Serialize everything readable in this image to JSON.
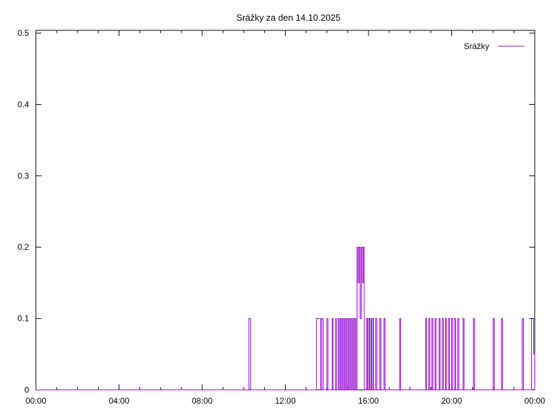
{
  "chart_data": {
    "type": "line",
    "title": "Srážky za den 14.10.2025",
    "xlabel": "",
    "ylabel": "",
    "x_ticks": [
      "00:00",
      "04:00",
      "08:00",
      "12:00",
      "16:00",
      "20:00",
      "00:00"
    ],
    "y_ticks": [
      "0",
      "0.1",
      "0.2",
      "0.3",
      "0.4",
      "0.5"
    ],
    "xlim_hours": [
      0,
      24
    ],
    "ylim": [
      0,
      0.5
    ],
    "grid": false,
    "legend_position": "top-right",
    "series": [
      {
        "name": "Srážky",
        "color": "#9400d3",
        "step": "post",
        "points": [
          [
            0.0,
            0
          ],
          [
            10.25,
            0.1
          ],
          [
            10.33,
            0
          ],
          [
            13.5,
            0.1
          ],
          [
            13.7,
            0
          ],
          [
            13.75,
            0.1
          ],
          [
            13.82,
            0
          ],
          [
            14.0,
            0.1
          ],
          [
            14.05,
            0
          ],
          [
            14.25,
            0.1
          ],
          [
            14.3,
            0
          ],
          [
            14.42,
            0.1
          ],
          [
            14.47,
            0
          ],
          [
            14.55,
            0.1
          ],
          [
            14.6,
            0
          ],
          [
            14.65,
            0.1
          ],
          [
            14.7,
            0
          ],
          [
            14.75,
            0.1
          ],
          [
            14.8,
            0
          ],
          [
            14.85,
            0.1
          ],
          [
            14.9,
            0
          ],
          [
            14.95,
            0.1
          ],
          [
            15.0,
            0
          ],
          [
            15.05,
            0.1
          ],
          [
            15.1,
            0
          ],
          [
            15.15,
            0.1
          ],
          [
            15.2,
            0
          ],
          [
            15.25,
            0.1
          ],
          [
            15.3,
            0
          ],
          [
            15.35,
            0.1
          ],
          [
            15.4,
            0
          ],
          [
            15.45,
            0.2
          ],
          [
            15.5,
            0.15
          ],
          [
            15.55,
            0.2
          ],
          [
            15.6,
            0.1
          ],
          [
            15.65,
            0.2
          ],
          [
            15.7,
            0.15
          ],
          [
            15.75,
            0.2
          ],
          [
            15.8,
            0
          ],
          [
            15.9,
            0.1
          ],
          [
            15.95,
            0
          ],
          [
            16.0,
            0.1
          ],
          [
            16.05,
            0
          ],
          [
            16.1,
            0.1
          ],
          [
            16.15,
            0
          ],
          [
            16.2,
            0.1
          ],
          [
            16.25,
            0
          ],
          [
            16.35,
            0.1
          ],
          [
            16.4,
            0
          ],
          [
            16.55,
            0.1
          ],
          [
            16.6,
            0
          ],
          [
            16.75,
            0.1
          ],
          [
            16.8,
            0
          ],
          [
            17.5,
            0.1
          ],
          [
            17.55,
            0
          ],
          [
            18.75,
            0.1
          ],
          [
            18.8,
            0
          ],
          [
            18.9,
            0.1
          ],
          [
            18.95,
            0
          ],
          [
            19.05,
            0.1
          ],
          [
            19.1,
            0
          ],
          [
            19.2,
            0.1
          ],
          [
            19.25,
            0
          ],
          [
            19.4,
            0.1
          ],
          [
            19.45,
            0
          ],
          [
            19.55,
            0.1
          ],
          [
            19.6,
            0
          ],
          [
            19.7,
            0.1
          ],
          [
            19.75,
            0
          ],
          [
            19.85,
            0.1
          ],
          [
            19.9,
            0
          ],
          [
            20.0,
            0.1
          ],
          [
            20.05,
            0
          ],
          [
            20.15,
            0.1
          ],
          [
            20.2,
            0
          ],
          [
            20.3,
            0.1
          ],
          [
            20.35,
            0
          ],
          [
            20.55,
            0.1
          ],
          [
            20.6,
            0
          ],
          [
            21.05,
            0.1
          ],
          [
            21.1,
            0
          ],
          [
            22.0,
            0.1
          ],
          [
            22.05,
            0
          ],
          [
            22.4,
            0.1
          ],
          [
            22.45,
            0
          ],
          [
            23.4,
            0.1
          ],
          [
            23.45,
            0
          ],
          [
            23.85,
            0.1
          ],
          [
            23.95,
            0.05
          ],
          [
            24.0,
            0
          ]
        ]
      }
    ]
  }
}
